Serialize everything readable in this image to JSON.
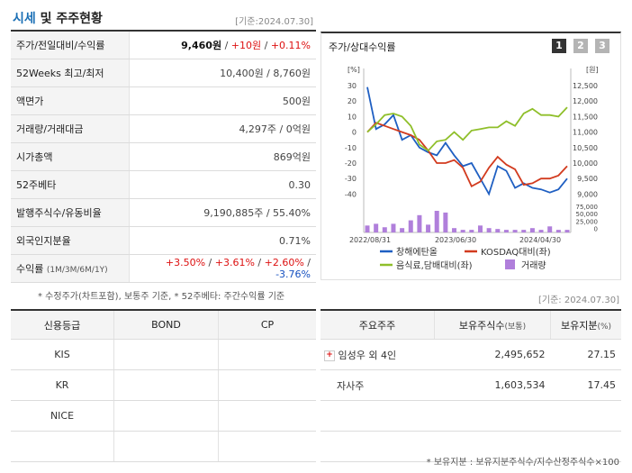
{
  "header": {
    "title_a": "시세",
    "title_b": "및 주주현황",
    "date": "[기준:2024.07.30]"
  },
  "stats": {
    "price_label": "주가/전일대비/수익률",
    "price": "9,460원",
    "sep1": " / ",
    "change": "+10원",
    "sep2": " / ",
    "rate": "+0.11%",
    "week52_label": "52Weeks 최고/최저",
    "week52": "10,400원 / 8,760원",
    "par_label": "액면가",
    "par": "500원",
    "volume_label": "거래량/거래대금",
    "volume": "4,297주 / 0억원",
    "mcap_label": "시가총액",
    "mcap": "869억원",
    "beta_label": "52주베타",
    "beta": "0.30",
    "shares_label": "발행주식수/유동비율",
    "shares": "9,190,885주 / 55.40%",
    "foreign_label": "외국인지분율",
    "foreign": "0.71%",
    "return_label": "수익률",
    "return_label_sub": "(1M/3M/6M/1Y)",
    "r1": "+3.50%",
    "r2": "+3.61%",
    "r3": "+2.60%",
    "r4": "-3.76%",
    "slash": " / "
  },
  "note": "* 수정주가(차트포함), 보통주 기준, * 52주베타: 주간수익률 기준",
  "chart_panel": {
    "title": "주가/상대수익률",
    "buttons": [
      "1",
      "2",
      "3"
    ],
    "button_colors": [
      "#333333",
      "#aaaaaa",
      "#aaaaaa"
    ]
  },
  "chart_data": {
    "type": "line",
    "left_unit": "[%]",
    "right_unit": "[원]",
    "left_ticks": [
      "30",
      "20",
      "10",
      "0",
      "-10",
      "-20",
      "-30",
      "-40"
    ],
    "right_ticks": [
      "12,500",
      "12,000",
      "11,500",
      "11,000",
      "10,500",
      "10,000",
      "9,500",
      "9,000"
    ],
    "vol_ticks": [
      "75,000",
      "50,000",
      "25,000",
      "0"
    ],
    "x_labels": [
      "2022/08/31",
      "2023/06/30",
      "2024/04/30"
    ],
    "ylim": [
      -45,
      35
    ],
    "series": [
      {
        "name": "창해에탄올",
        "color": "#1f5fc2",
        "values": [
          29,
          2,
          5,
          11,
          -5,
          -2,
          -10,
          -13,
          -15,
          -7,
          -15,
          -22,
          -20,
          -30,
          -40,
          -22,
          -25,
          -36,
          -33,
          -36,
          -37,
          -39,
          -37,
          -30
        ]
      },
      {
        "name": "KOSDAQ대비(좌)",
        "color": "#d23b1f",
        "values": [
          0,
          6,
          4,
          2,
          0,
          -2,
          -5,
          -12,
          -20,
          -20,
          -18,
          -23,
          -35,
          -32,
          -23,
          -16,
          -21,
          -24,
          -34,
          -33,
          -30,
          -30,
          -28,
          -22
        ]
      },
      {
        "name": "음식료,담배대비(좌)",
        "color": "#8fbf2a",
        "values": [
          0,
          5,
          11,
          12,
          10,
          4,
          -8,
          -12,
          -6,
          -5,
          0,
          -5,
          1,
          2,
          3,
          3,
          7,
          4,
          12,
          15,
          11,
          11,
          10,
          16
        ]
      }
    ],
    "volume": {
      "name": "거래량",
      "color": "#b07fdb",
      "values": [
        8,
        10,
        6,
        10,
        5,
        14,
        20,
        9,
        25,
        23,
        5,
        3,
        3,
        8,
        5,
        4,
        3,
        3,
        3,
        5,
        3,
        7,
        3,
        3
      ]
    }
  },
  "date2": "[기준: 2024.07.30]",
  "credit": {
    "headers": [
      "신용등급",
      "BOND",
      "CP"
    ],
    "rows": [
      [
        "KIS",
        "",
        ""
      ],
      [
        "KR",
        "",
        ""
      ],
      [
        "NICE",
        "",
        ""
      ],
      [
        "",
        "",
        ""
      ]
    ]
  },
  "holders": {
    "headers": [
      "주요주주",
      "보유주식수",
      "(보통)",
      "보유지분",
      "(%)"
    ],
    "rows": [
      {
        "name": "임성우 외 4인",
        "shares": "2,495,652",
        "pct": "27.15",
        "expand": "+"
      },
      {
        "name": "자사주",
        "shares": "1,603,534",
        "pct": "17.45"
      }
    ]
  },
  "footnote": "* 보유지분 : 보유지분주식수/지수산정주식수×100"
}
